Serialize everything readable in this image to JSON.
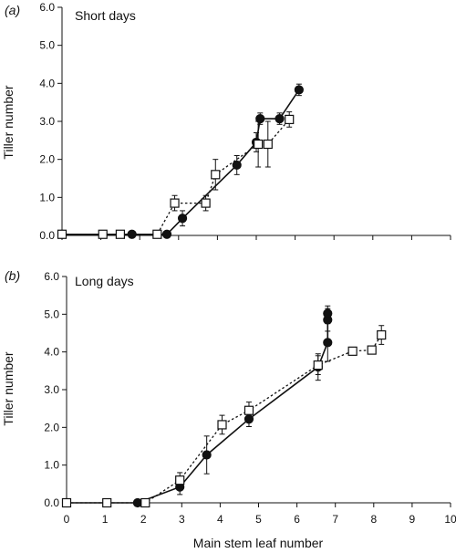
{
  "chart_data": [
    {
      "type": "line",
      "panel_label": "(a)",
      "title": "Short days",
      "xlabel": "",
      "ylabel": "Tiller number",
      "xlim": [
        0,
        10
      ],
      "ylim": [
        0,
        6
      ],
      "x_ticks": [],
      "y_ticks": [
        "0.0",
        "1.0",
        "2.0",
        "3.0",
        "4.0",
        "5.0",
        "6.0"
      ],
      "series": [
        {
          "marker": "filled-circle",
          "line_style": "solid",
          "x": [
            0,
            1.8,
            2.7,
            3.1,
            4.5,
            5.0,
            5.1,
            5.6,
            6.1
          ],
          "y": [
            0.03,
            0.03,
            0.03,
            0.45,
            1.85,
            2.45,
            3.07,
            3.07,
            3.83
          ],
          "err": [
            0,
            0,
            0,
            0.2,
            0.25,
            0.25,
            0.15,
            0.15,
            0.15
          ]
        },
        {
          "marker": "open-square",
          "line_style": "dotted",
          "x": [
            0,
            1.05,
            1.5,
            2.45,
            2.9,
            3.7,
            3.95,
            5.05,
            5.3,
            5.85
          ],
          "y": [
            0.03,
            0.03,
            0.03,
            0.03,
            0.85,
            0.85,
            1.6,
            2.4,
            2.4,
            3.05
          ],
          "err": [
            0,
            0,
            0,
            0,
            0.2,
            0.2,
            0.4,
            0.6,
            0.6,
            0.2
          ]
        }
      ]
    },
    {
      "type": "line",
      "panel_label": "(b)",
      "title": "Long days",
      "xlabel": "Main stem leaf number",
      "ylabel": "Tiller number",
      "xlim": [
        0,
        10
      ],
      "ylim": [
        0,
        6
      ],
      "x_ticks": [
        "0",
        "1",
        "2",
        "3",
        "4",
        "5",
        "6",
        "7",
        "8",
        "9",
        "10"
      ],
      "y_ticks": [
        "0.0",
        "1.0",
        "2.0",
        "3.0",
        "4.0",
        "5.0",
        "6.0"
      ],
      "series": [
        {
          "marker": "filled-circle",
          "line_style": "solid",
          "x": [
            0,
            1.85,
            2.95,
            3.65,
            4.75,
            6.55,
            6.8,
            6.8,
            6.8
          ],
          "y": [
            0.0,
            0.0,
            0.42,
            1.27,
            2.22,
            3.6,
            4.25,
            4.85,
            5.02
          ],
          "err": [
            0,
            0,
            0.2,
            0.5,
            0.2,
            0.35,
            0.5,
            0.3,
            0.2
          ]
        },
        {
          "marker": "open-square",
          "line_style": "dotted",
          "x": [
            0,
            1.05,
            2.05,
            2.95,
            4.05,
            4.75,
            6.55,
            7.45,
            7.95,
            8.2
          ],
          "y": [
            0.0,
            0.0,
            0.0,
            0.6,
            2.07,
            2.45,
            3.65,
            4.02,
            4.05,
            4.45
          ],
          "err": [
            0,
            0,
            0,
            0.2,
            0.25,
            0.22,
            0.25,
            0,
            0,
            0.25
          ]
        }
      ]
    }
  ]
}
